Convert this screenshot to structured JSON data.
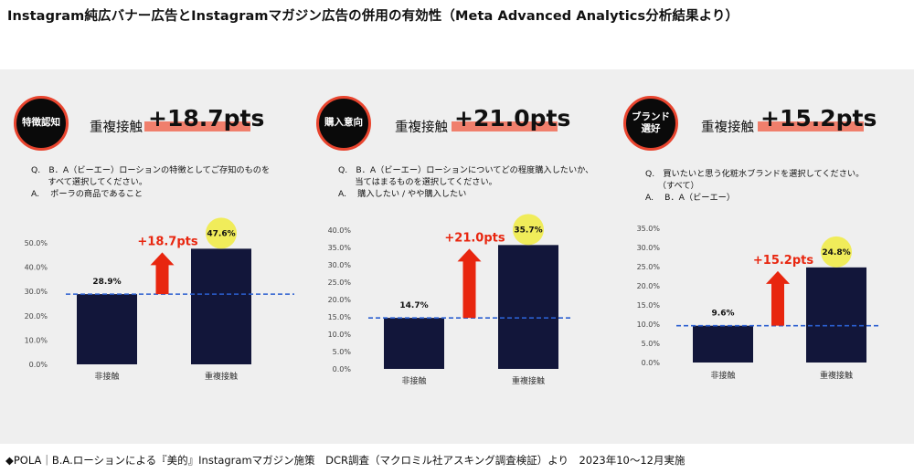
{
  "title": "Instagram純広バナー広告とInstagramマガジン広告の併用の有効性（Meta Advanced Analytics分析結果より）",
  "footnote": "◆POLA｜B.A.ローションによる『美的』Instagramマガジン施策　DCR調査（マクロミル社アスキング調査検証）より　2023年10〜12月実施",
  "colors": {
    "bar": "#12163a",
    "arrow": "#e8260f",
    "highlight": "#f0ec5a",
    "dashed": "#2b5fd0",
    "underline": "#f07f6c",
    "badge_border": "#e8442e"
  },
  "panels": [
    {
      "badge": "特徴認知",
      "head_label": "重複接触",
      "head_value": "+18.7pts",
      "q_lines": [
        "Q.　B．A（ビーエー）ローションの特徴としてご存知のものを",
        "　　すべて選択してください。",
        "A.　 ポーラの商品であること"
      ]
    },
    {
      "badge": "購入意向",
      "head_label": "重複接触",
      "head_value": "+21.0pts",
      "q_lines": [
        "Q.　B．A（ビーエー）ローションについてどの程度購入したいか、",
        "　　当てはまるものを選択してください。",
        "A.　 購入したい / やや購入したい"
      ]
    },
    {
      "badge": "ブランド\n選好",
      "head_label": "重複接触",
      "head_value": "+15.2pts",
      "q_lines": [
        "Q.　買いたいと思う化粧水ブランドを選択してください。",
        "　　（すべて）",
        "A.　 B．A（ビーエー）"
      ]
    }
  ],
  "chart_data": [
    {
      "type": "bar",
      "categories": [
        "非接触",
        "重複接触"
      ],
      "values": [
        28.9,
        47.6
      ],
      "value_labels": [
        "28.9%",
        "47.6%"
      ],
      "yticks": [
        "0.0%",
        "10.0%",
        "20.0%",
        "30.0%",
        "40.0%",
        "50.0%"
      ],
      "ylim": [
        0,
        50
      ],
      "annotation": "+18.7pts"
    },
    {
      "type": "bar",
      "categories": [
        "非接触",
        "重複接触"
      ],
      "values": [
        14.7,
        35.7
      ],
      "value_labels": [
        "14.7%",
        "35.7%"
      ],
      "yticks": [
        "0.0%",
        "5.0%",
        "10.0%",
        "15.0%",
        "20.0%",
        "25.0%",
        "30.0%",
        "35.0%",
        "40.0%"
      ],
      "ylim": [
        0,
        40
      ],
      "annotation": "+21.0pts"
    },
    {
      "type": "bar",
      "categories": [
        "非接触",
        "重複接触"
      ],
      "values": [
        9.6,
        24.8
      ],
      "value_labels": [
        "9.6%",
        "24.8%"
      ],
      "yticks": [
        "0.0%",
        "5.0%",
        "10.0%",
        "15.0%",
        "20.0%",
        "25.0%",
        "30.0%",
        "35.0%"
      ],
      "ylim": [
        0,
        35
      ],
      "annotation": "+15.2pts"
    }
  ]
}
